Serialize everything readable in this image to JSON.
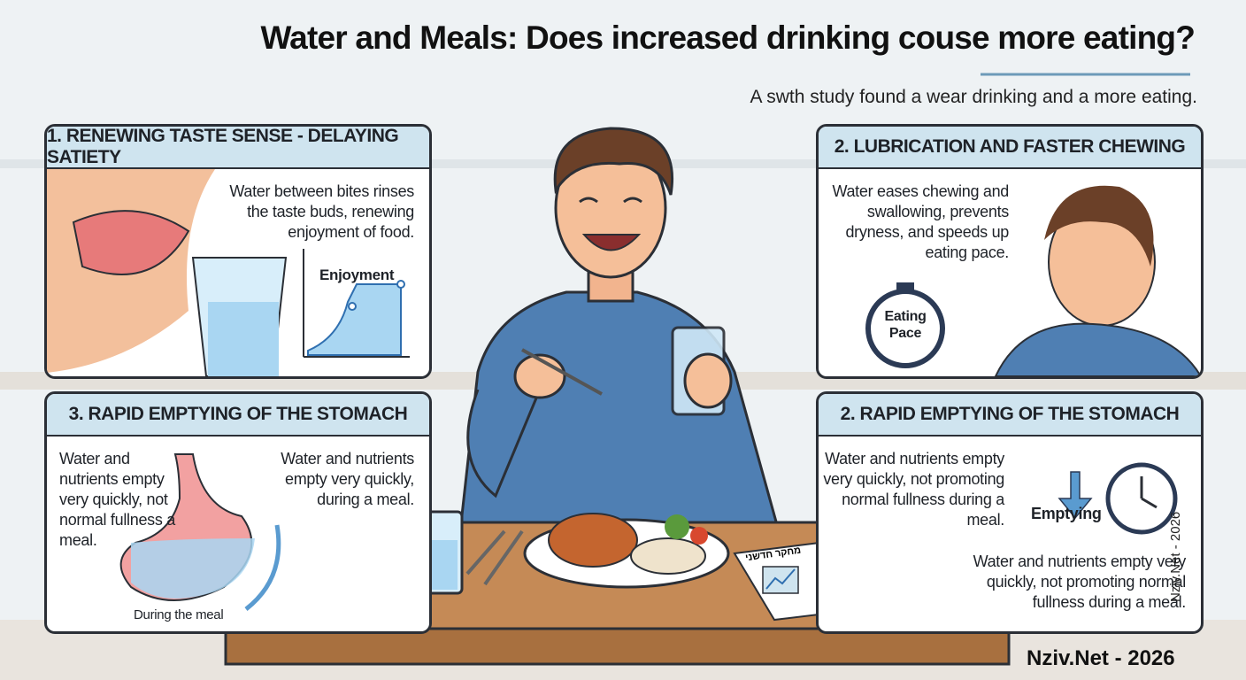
{
  "header": {
    "title": "Water and Meals: Does increased drinking couse more eating?",
    "subtitle": "A swth study found a wear drinking and a more eating."
  },
  "panels": [
    {
      "heading": "1. RENEWING TASTE SENSE - DELAYING SATIETY",
      "text": "Water between bites rinses the taste buds, renewing enjoyment of food.",
      "chart_label": "Enjoyment"
    },
    {
      "heading": "2. LUBRICATION AND FASTER CHEWING",
      "text": "Water eases chewing and swallowing, prevents dryness, and speeds up eating pace.",
      "icon_label": "Eating Pace"
    },
    {
      "heading": "3. RAPID EMPTYING OF THE STOMACH",
      "text_left": "Water and nutrients empty very quickly, not normal fullness a meal.",
      "text_right": "Water and nutrients empty very quickly, during a meal.",
      "caption": "During the meal"
    },
    {
      "heading": "2. RAPID EMPTYING OF THE STOMACH",
      "text": "Water and nutrients empty very quickly, not promoting normal fullness during a meal.",
      "icon_label": "Emptying",
      "text_bottom": "Water and nutrients empty very quickly, not promoting normal fullness during a meal."
    }
  ],
  "newspaper": "מחקר חדשני",
  "footer": {
    "credit": "Nziv.Net - 2026",
    "vertical_credit": "Nziv.Net - 2026"
  }
}
